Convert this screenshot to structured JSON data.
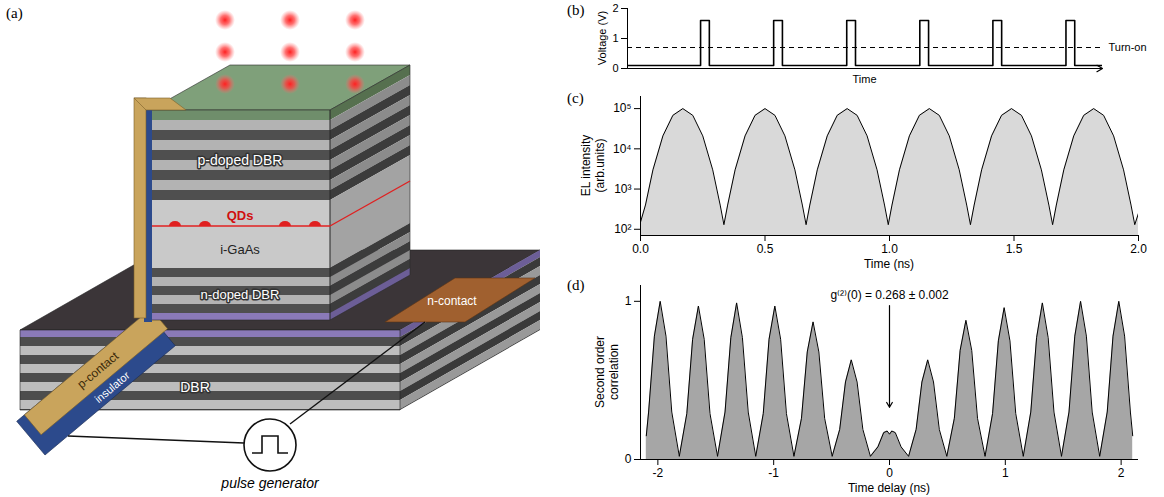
{
  "diagram": {
    "panel": "(a)",
    "layers": {
      "p_doped": "p-doped DBR",
      "quantum_dots": "QDs",
      "intrinsic": "i-GaAs",
      "n_doped": "n-doped DBR",
      "substrate_mirror": "DBR"
    },
    "contacts": {
      "p": "p-contact",
      "insulator": "insulator",
      "n": "n-contact"
    },
    "source": "pulse generator"
  },
  "chart_data": [
    {
      "panel": "(b)",
      "type": "line",
      "x_label": "Time",
      "y_label": "Voltage (V)",
      "color": "#000000",
      "x": [
        0,
        1,
        1,
        1.12,
        1.12,
        2,
        2,
        2.12,
        2.12,
        3,
        3,
        3.12,
        3.12,
        4,
        4,
        4.12,
        4.12,
        5,
        5,
        5.12,
        5.12,
        6,
        6,
        6.12,
        6.12,
        6.5
      ],
      "values": [
        0.1,
        0.1,
        1.6,
        1.6,
        0.1,
        0.1,
        1.6,
        1.6,
        0.1,
        0.1,
        1.6,
        1.6,
        0.1,
        0.1,
        1.6,
        1.6,
        0.1,
        0.1,
        1.6,
        1.6,
        0.1,
        0.1,
        1.6,
        1.6,
        0.1,
        0.1
      ],
      "xlim": [
        0,
        6.5
      ],
      "ylim": [
        0,
        2
      ],
      "yticks": [
        0,
        1,
        2
      ],
      "tick_labels": "y",
      "annotations": [
        {
          "text": "Turn-on",
          "y": 0.7,
          "line_style": "dashed"
        }
      ]
    },
    {
      "panel": "(c)",
      "type": "area",
      "log": "y",
      "x_label": "Time (ns)",
      "y_label": "EL intensity (arb.units)",
      "color": "#d9d9d9",
      "x": [
        0,
        0.02,
        0.05,
        0.09,
        0.13,
        0.17,
        0.21,
        0.25,
        0.29,
        0.32,
        0.335,
        0.35,
        0.38,
        0.42,
        0.46,
        0.5,
        0.54,
        0.58,
        0.62,
        0.65,
        0.665,
        0.68,
        0.71,
        0.75,
        0.79,
        0.83,
        0.87,
        0.91,
        0.95,
        0.98,
        0.995,
        1.01,
        1.04,
        1.08,
        1.12,
        1.16,
        1.2,
        1.24,
        1.28,
        1.31,
        1.325,
        1.34,
        1.37,
        1.41,
        1.45,
        1.49,
        1.53,
        1.57,
        1.61,
        1.64,
        1.655,
        1.67,
        1.7,
        1.74,
        1.78,
        1.82,
        1.86,
        1.9,
        1.94,
        1.97,
        1.985,
        2
      ],
      "values": [
        150,
        400,
        3000,
        21000,
        68000,
        100000,
        68000,
        21000,
        3000,
        400,
        130,
        400,
        3000,
        21000,
        68000,
        100000,
        68000,
        21000,
        3000,
        400,
        130,
        400,
        3000,
        21000,
        68000,
        100000,
        68000,
        21000,
        3000,
        400,
        130,
        400,
        3000,
        21000,
        68000,
        100000,
        68000,
        21000,
        3000,
        400,
        130,
        400,
        3000,
        21000,
        68000,
        100000,
        68000,
        21000,
        3000,
        400,
        130,
        400,
        3000,
        21000,
        68000,
        100000,
        68000,
        21000,
        3000,
        400,
        130,
        250
      ],
      "xlim": [
        0,
        2
      ],
      "ylim": [
        70,
        200000
      ],
      "xticks": [
        {
          "value": 0,
          "label": "0.0"
        },
        0.5,
        {
          "value": 1,
          "label": "1.0"
        },
        1.5,
        {
          "value": 2,
          "label": "2.0"
        }
      ],
      "yticks": [
        {
          "value": 100,
          "label": "10²"
        },
        {
          "value": 1000,
          "label": "10³"
        },
        {
          "value": 10000,
          "label": "10⁴"
        },
        {
          "value": 100000,
          "label": "10⁵"
        }
      ]
    },
    {
      "panel": "(d)",
      "type": "area",
      "x_label": "Time delay (ns)",
      "y_label": "Second order correlation",
      "color": "#a6a6a6",
      "x": [
        -2.1,
        -2.08,
        -2.03,
        -1.98,
        -1.93,
        -1.88,
        -1.815,
        -1.75,
        -1.7,
        -1.65,
        -1.6,
        -1.55,
        -1.485,
        -1.42,
        -1.37,
        -1.32,
        -1.27,
        -1.22,
        -1.155,
        -1.09,
        -1.04,
        -0.99,
        -0.94,
        -0.89,
        -0.825,
        -0.76,
        -0.71,
        -0.66,
        -0.61,
        -0.56,
        -0.495,
        -0.43,
        -0.38,
        -0.33,
        -0.28,
        -0.23,
        -0.165,
        -0.1,
        -0.05,
        -0.02,
        0,
        0.02,
        0.05,
        0.1,
        0.165,
        0.23,
        0.28,
        0.33,
        0.38,
        0.43,
        0.495,
        0.56,
        0.61,
        0.66,
        0.71,
        0.76,
        0.825,
        0.89,
        0.94,
        0.99,
        1.04,
        1.09,
        1.155,
        1.22,
        1.27,
        1.32,
        1.37,
        1.42,
        1.485,
        1.55,
        1.6,
        1.65,
        1.7,
        1.75,
        1.815,
        1.88,
        1.93,
        1.98,
        2.03,
        2.08,
        2.1
      ],
      "values": [
        0.15,
        0.3,
        0.78,
        1,
        0.78,
        0.3,
        0.02,
        0.29,
        0.76,
        0.97,
        0.76,
        0.29,
        0.02,
        0.3,
        0.77,
        0.99,
        0.77,
        0.3,
        0.02,
        0.29,
        0.76,
        0.97,
        0.76,
        0.29,
        0.02,
        0.26,
        0.68,
        0.87,
        0.68,
        0.26,
        0.02,
        0.19,
        0.49,
        0.63,
        0.49,
        0.19,
        0.02,
        0.08,
        0.17,
        0.18,
        0.16,
        0.18,
        0.17,
        0.08,
        0.02,
        0.19,
        0.49,
        0.63,
        0.49,
        0.19,
        0.02,
        0.26,
        0.69,
        0.88,
        0.69,
        0.26,
        0.02,
        0.29,
        0.75,
        0.96,
        0.75,
        0.29,
        0.02,
        0.3,
        0.77,
        0.99,
        0.77,
        0.3,
        0.02,
        0.3,
        0.78,
        1,
        0.78,
        0.3,
        0.02,
        0.3,
        0.78,
        1,
        0.78,
        0.3,
        0.15
      ],
      "xlim": [
        -2.15,
        2.15
      ],
      "ylim": [
        0,
        1.1
      ],
      "xticks": [
        -2,
        -1,
        0,
        1,
        2
      ],
      "yticks": [
        0,
        1
      ],
      "annotations": [
        {
          "text": "g⁽²⁾(0) = 0.268 ± 0.002",
          "x": 0
        }
      ]
    }
  ]
}
